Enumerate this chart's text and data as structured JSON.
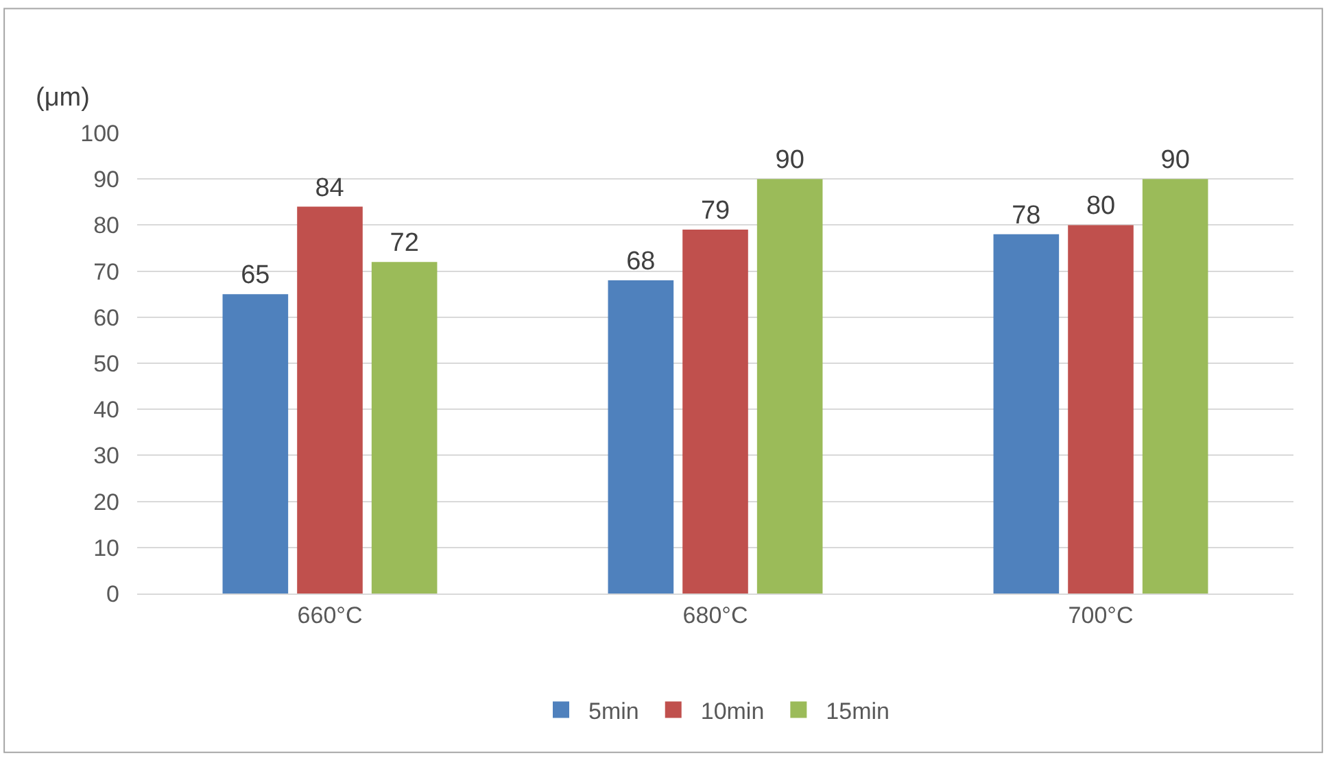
{
  "chart_data": {
    "type": "bar",
    "ylabel": "(μm)",
    "categories": [
      "660°C",
      "680°C",
      "700°C"
    ],
    "series": [
      {
        "name": "5min",
        "color": "#4f81bd",
        "values": [
          65,
          68,
          78
        ]
      },
      {
        "name": "10min",
        "color": "#c0504d",
        "values": [
          84,
          79,
          80
        ]
      },
      {
        "name": "15min",
        "color": "#9bbb59",
        "values": [
          72,
          90,
          90
        ]
      }
    ],
    "ylim": [
      0,
      100
    ],
    "yticks": [
      0,
      10,
      20,
      30,
      40,
      50,
      60,
      70,
      80,
      90,
      100
    ],
    "grid": "y",
    "legend": "bottom",
    "data_labels": true
  }
}
